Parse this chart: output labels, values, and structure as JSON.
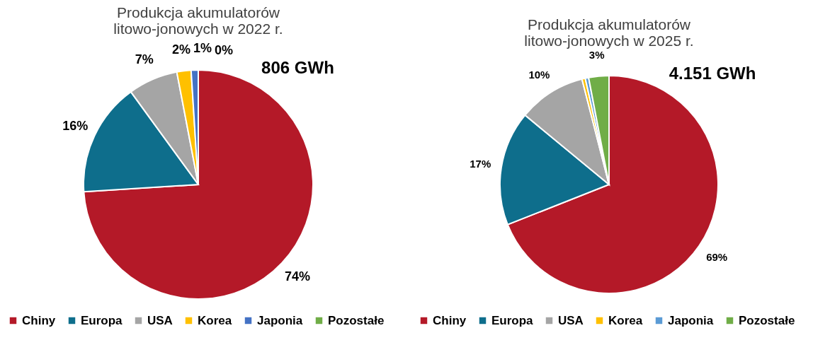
{
  "chart_data": [
    {
      "type": "pie",
      "title": "Produkcja akumulatorów litowo-jonowych w 2022 r.",
      "categories": [
        "Chiny",
        "Europa",
        "USA",
        "Korea",
        "Japonia",
        "Pozostałe"
      ],
      "values": [
        74,
        16,
        7,
        2,
        1,
        0
      ],
      "value_labels": [
        "74%",
        "16%",
        "7%",
        "2%",
        "1%",
        "0%"
      ],
      "colors": [
        "#b41928",
        "#0e6e8c",
        "#a5a5a5",
        "#ffc000",
        "#4472c4",
        "#70ad47"
      ],
      "annotations": [
        "806 GWh"
      ],
      "legend": "bottom"
    },
    {
      "type": "pie",
      "title": "Produkcja akumulatorów litowo-jonowych w 2025 r.",
      "categories": [
        "Chiny",
        "Europa",
        "USA",
        "Korea",
        "Japonia",
        "Pozostałe"
      ],
      "values": [
        69,
        17,
        10,
        0.5,
        0.5,
        3
      ],
      "value_labels": [
        "69%",
        "17%",
        "10%",
        null,
        null,
        "3%"
      ],
      "colors": [
        "#b41928",
        "#0e6e8c",
        "#a5a5a5",
        "#ffc000",
        "#5b9bd5",
        "#70ad47"
      ],
      "annotations": [
        "4.151 GWh"
      ],
      "legend": "bottom"
    }
  ]
}
